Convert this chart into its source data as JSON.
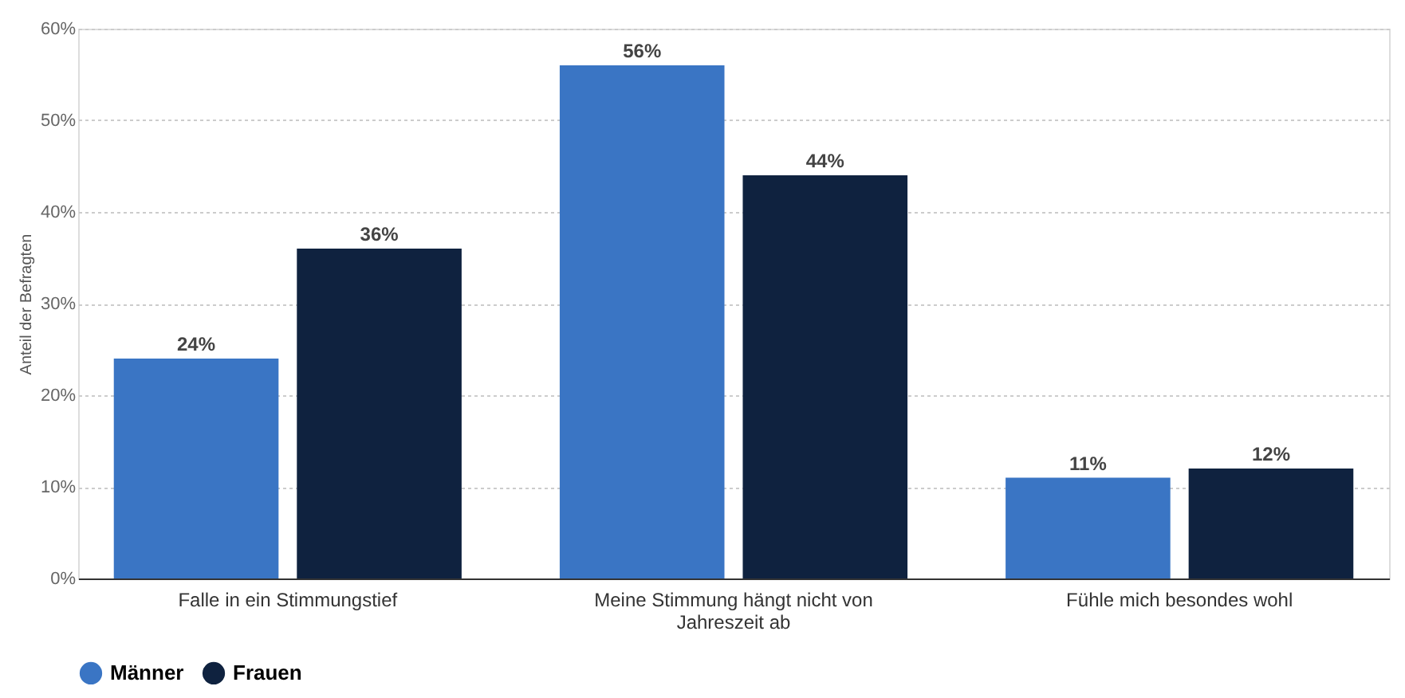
{
  "chart_data": {
    "type": "bar",
    "ylabel": "Anteil der Befragten",
    "categories": [
      "Falle in ein Stimmungstief",
      "Meine Stimmung hängt nicht von Jahreszeit ab",
      "Fühle mich besondes wohl"
    ],
    "series": [
      {
        "name": "Männer",
        "color": "#3a75c4",
        "values": [
          24,
          56,
          11
        ],
        "value_labels": [
          "24%",
          "56%",
          "11%"
        ]
      },
      {
        "name": "Frauen",
        "color": "#0f223f",
        "values": [
          36,
          44,
          12
        ],
        "value_labels": [
          "36%",
          "44%",
          "12%"
        ]
      }
    ],
    "ylim": [
      0,
      60
    ],
    "yticks": [
      {
        "value": 0,
        "label": "0%"
      },
      {
        "value": 10,
        "label": "10%"
      },
      {
        "value": 20,
        "label": "20%"
      },
      {
        "value": 30,
        "label": "30%"
      },
      {
        "value": 40,
        "label": "40%"
      },
      {
        "value": 50,
        "label": "50%"
      },
      {
        "value": 60,
        "label": "60%"
      }
    ],
    "grid": "y",
    "legend": "bottom"
  }
}
